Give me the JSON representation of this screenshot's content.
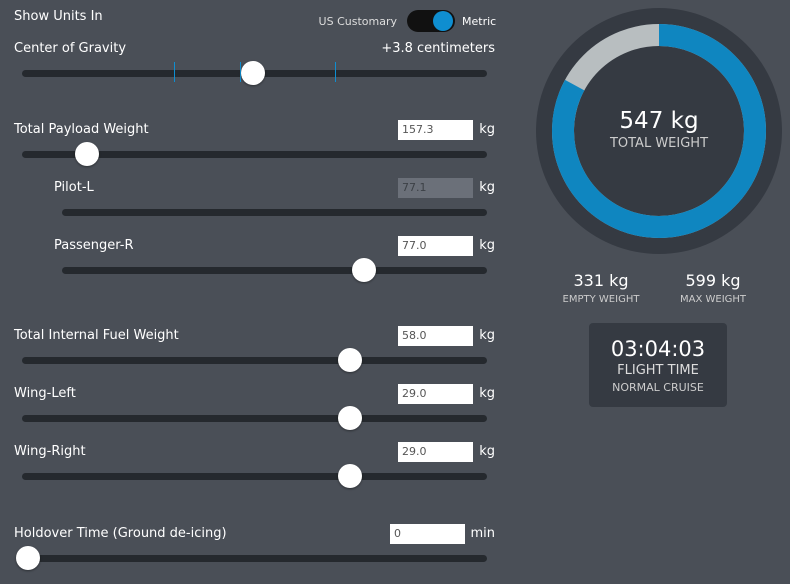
{
  "units": {
    "label": "Show Units In",
    "option_off": "US Customary",
    "option_on": "Metric"
  },
  "center_of_gravity": {
    "label": "Center of Gravity",
    "value": "+3.8 centimeters"
  },
  "fields": [
    {
      "label": "Total Payload Weight",
      "value": "157.3",
      "unit": "kg"
    },
    {
      "label": "Pilot-L",
      "value": "77.1",
      "unit": "kg"
    },
    {
      "label": "Passenger-R",
      "value": "77.0",
      "unit": "kg"
    },
    {
      "label": "Total Internal Fuel Weight",
      "value": "58.0",
      "unit": "kg"
    },
    {
      "label": "Wing-Left",
      "value": "29.0",
      "unit": "kg"
    },
    {
      "label": "Wing-Right",
      "value": "29.0",
      "unit": "kg"
    },
    {
      "label": "Holdover Time (Ground de-icing)",
      "value": "0",
      "unit": "min"
    }
  ],
  "summary": {
    "total_weight": "547 kg",
    "total_weight_label": "TOTAL WEIGHT",
    "empty_weight": "331 kg",
    "empty_weight_label": "EMPTY WEIGHT",
    "max_weight": "599 kg",
    "max_weight_label": "MAX WEIGHT"
  },
  "flight_time": {
    "value": "03:04:03",
    "label": "FLIGHT TIME",
    "mode": "NORMAL CRUISE"
  }
}
